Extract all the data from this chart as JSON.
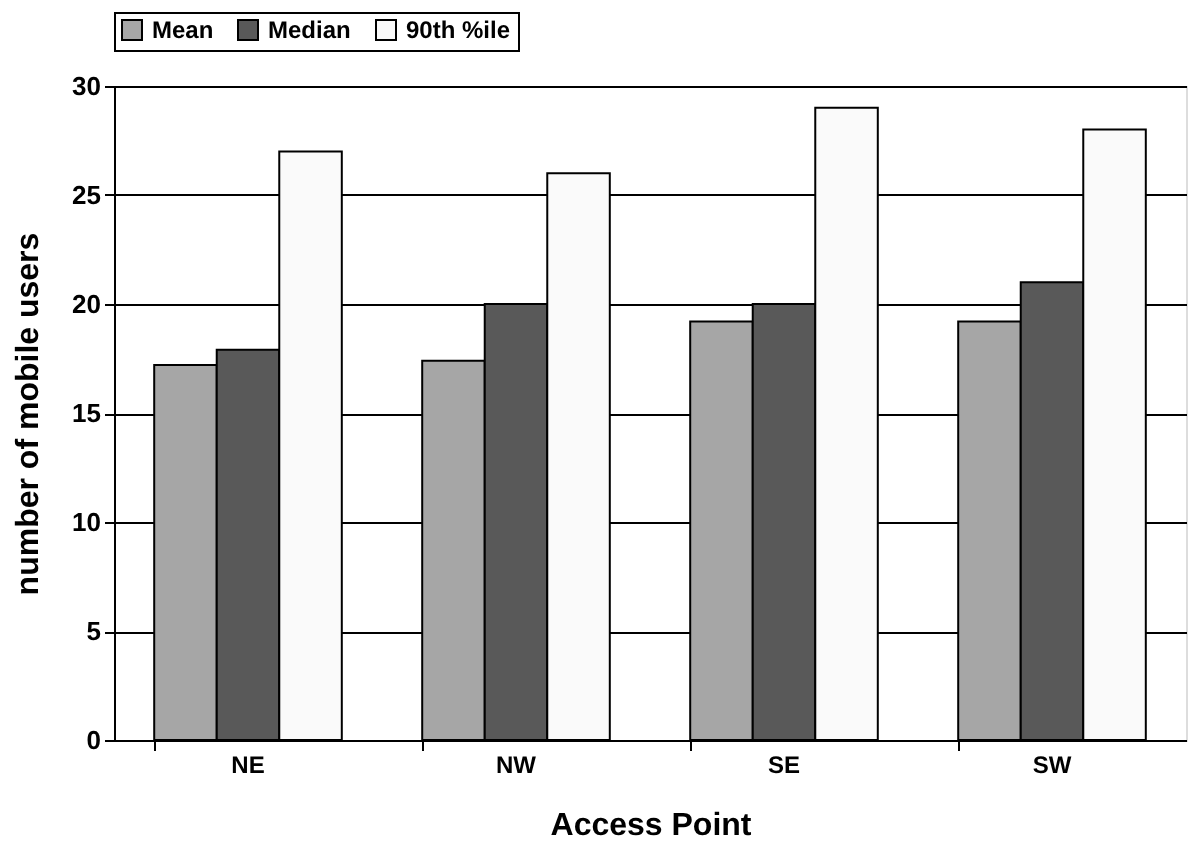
{
  "chart_data": {
    "type": "bar",
    "xlabel": "Access Point",
    "ylabel": "number of mobile users",
    "categories": [
      "NE",
      "NW",
      "SE",
      "SW"
    ],
    "series": [
      {
        "name": "Mean",
        "color": "#a6a6a6",
        "values": [
          17.2,
          17.4,
          19.2,
          19.2
        ]
      },
      {
        "name": "Median",
        "color": "#595959",
        "values": [
          17.9,
          20,
          20,
          21
        ]
      },
      {
        "name": "90th %ile",
        "color": "#fafafa",
        "values": [
          27,
          26,
          29,
          28
        ]
      }
    ],
    "ylim": [
      0,
      30
    ],
    "yticks": [
      0,
      5,
      10,
      15,
      20,
      25,
      30
    ],
    "grid": "y",
    "legend": "top"
  }
}
